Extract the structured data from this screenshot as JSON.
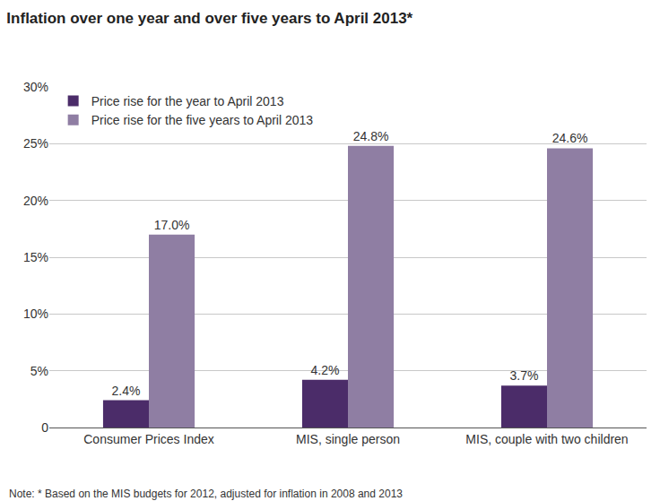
{
  "chart_data": {
    "type": "bar",
    "title": "Inflation over one year and over five years to April 2013*",
    "categories": [
      "Consumer Prices Index",
      "MIS, single person",
      "MIS, couple with two children"
    ],
    "series": [
      {
        "name": "Price rise for the year to April 2013",
        "color": "#4b2c69",
        "values": [
          2.4,
          4.2,
          3.7
        ],
        "value_labels": [
          "2.4%",
          "4.2%",
          "3.7%"
        ]
      },
      {
        "name": "Price rise for the five years to April 2013",
        "color": "#8f7ea3",
        "values": [
          17.0,
          24.8,
          24.6
        ],
        "value_labels": [
          "17.0%",
          "24.8%",
          "24.6%"
        ]
      }
    ],
    "ylim": [
      0,
      30
    ],
    "yticks": [
      {
        "value": 0,
        "label": "0"
      },
      {
        "value": 5,
        "label": "5%"
      },
      {
        "value": 10,
        "label": "10%"
      },
      {
        "value": 15,
        "label": "15%"
      },
      {
        "value": 20,
        "label": "20%"
      },
      {
        "value": 25,
        "label": "25%"
      },
      {
        "value": 30,
        "label": "30%"
      }
    ],
    "grid": true,
    "legend": "top-left",
    "data_labels": true,
    "annotations": [
      "Note: * Based on the MIS budgets for 2012, adjusted for inflation in 2008 and 2013"
    ]
  }
}
